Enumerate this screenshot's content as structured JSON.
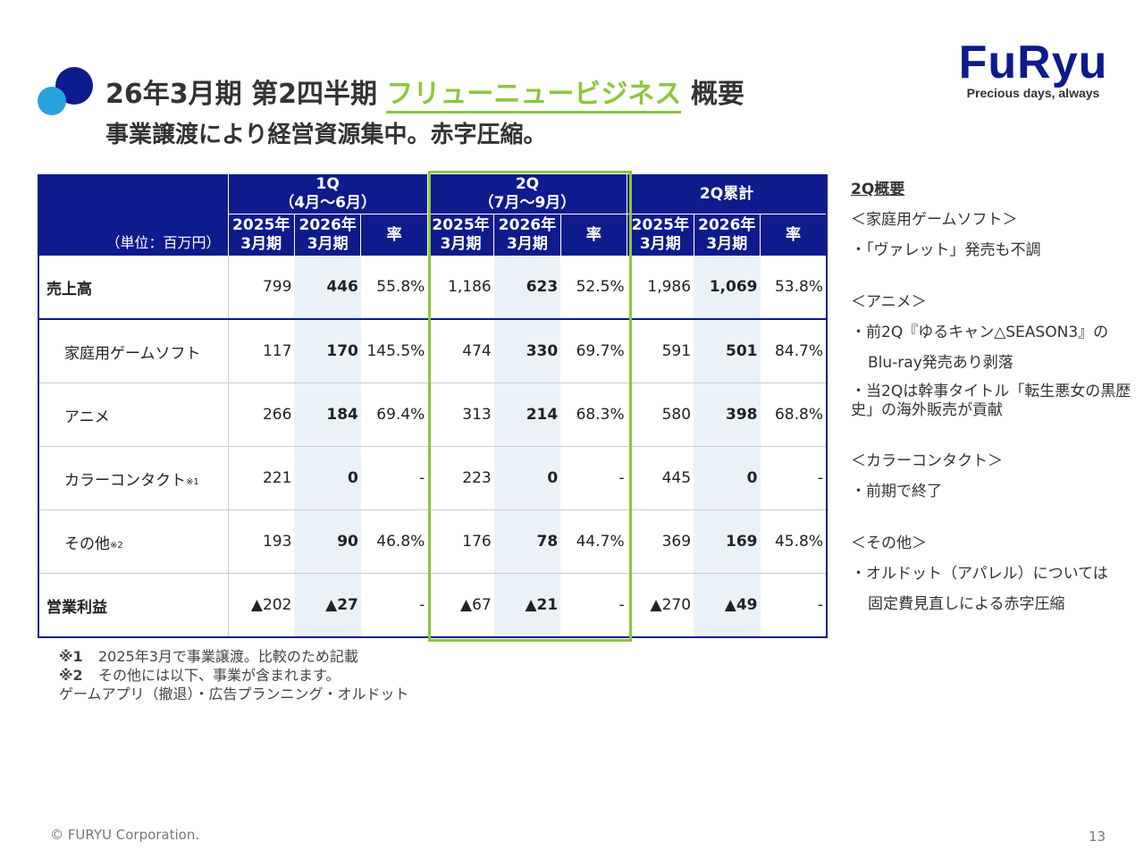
{
  "header": {
    "title_prefix": "26年3月期 第2四半期 ",
    "title_highlight": "フリューニュービジネス",
    "title_suffix": " 概要",
    "subtitle": "事業譲渡により経営資源集中。赤字圧縮。"
  },
  "logo": {
    "wordmark": "FuRyu",
    "tagline": "Precious days, always"
  },
  "table": {
    "unit_label": "（単位：百万円）",
    "groups": [
      {
        "line1": "1Q",
        "line2": "（4月～6月）"
      },
      {
        "line1": "2Q",
        "line2": "（7月～9月）"
      },
      {
        "line1": "2Q累計",
        "line2": ""
      }
    ],
    "sub_headers": {
      "prev_l1": "2025年",
      "prev_l2": "3月期",
      "curr_l1": "2026年",
      "curr_l2": "3月期",
      "rate": "率"
    },
    "rows": [
      {
        "label": "売上高",
        "note": "",
        "values": [
          "799",
          "446",
          "55.8%",
          "1,186",
          "623",
          "52.5%",
          "1,986",
          "1,069",
          "53.8%"
        ]
      },
      {
        "label": "家庭用ゲームソフト",
        "note": "",
        "values": [
          "117",
          "170",
          "145.5%",
          "474",
          "330",
          "69.7%",
          "591",
          "501",
          "84.7%"
        ]
      },
      {
        "label": "アニメ",
        "note": "",
        "values": [
          "266",
          "184",
          "69.4%",
          "313",
          "214",
          "68.3%",
          "580",
          "398",
          "68.8%"
        ]
      },
      {
        "label": "カラーコンタクト",
        "note": "※1",
        "values": [
          "221",
          "0",
          "-",
          "223",
          "0",
          "-",
          "445",
          "0",
          "-"
        ]
      },
      {
        "label": "その他",
        "note": "※2",
        "values": [
          "193",
          "90",
          "46.8%",
          "176",
          "78",
          "44.7%",
          "369",
          "169",
          "45.8%"
        ]
      },
      {
        "label": "営業利益",
        "note": "",
        "values": [
          "▲202",
          "▲27",
          "-",
          "▲67",
          "▲21",
          "-",
          "▲270",
          "▲49",
          "-"
        ]
      }
    ]
  },
  "notes": {
    "n1_mark": "※1",
    "n1_text": "2025年3月で事業譲渡。比較のため記載",
    "n2_mark": "※2",
    "n2_text": "その他には以下、事業が含まれます。",
    "n3_text": "ゲームアプリ（撤退）・広告プランニング・オルドット"
  },
  "side": {
    "heading": "2Q概要",
    "l1": "＜家庭用ゲームソフト＞",
    "l2": "・「ヴァレット」発売も不調",
    "l3": "＜アニメ＞",
    "l4": "・前2Q『ゆるキャン△SEASON3』の",
    "l5": "Blu-ray発売あり剥落",
    "l6": "・当2Qは幹事タイトル「転生悪女の黒歴史」の海外販売が貢献",
    "l7": "＜カラーコンタクト＞",
    "l8": "・前期で終了",
    "l9": "＜その他＞",
    "l10": "・オルドット（アパレル）については",
    "l11": "固定費見直しによる赤字圧縮"
  },
  "footer": {
    "copyright": "© FURYU Corporation.",
    "page": "13"
  },
  "colors": {
    "navy": "#0d1b8c",
    "green": "#8cc63f",
    "light_blue": "#29a3dd",
    "shade": "#eaf2f8"
  }
}
